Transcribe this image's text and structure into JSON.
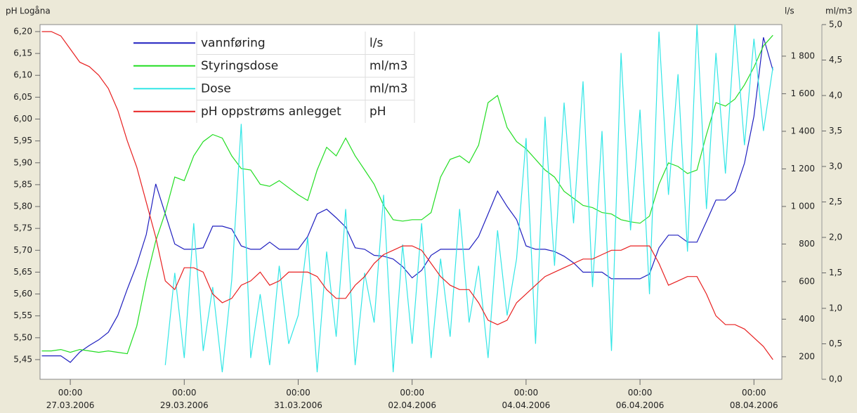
{
  "chart_data": {
    "type": "line",
    "axis_titles": {
      "y": "pH",
      "y_sub": "Logåna",
      "y2": "l/s",
      "y3": "ml/m3"
    },
    "x": [
      "2006-03-26T12:00",
      "2006-03-26T16:00",
      "2006-03-26T20:00",
      "2006-03-27T00:00",
      "2006-03-27T04:00",
      "2006-03-27T08:00",
      "2006-03-27T12:00",
      "2006-03-27T16:00",
      "2006-03-27T20:00",
      "2006-03-28T00:00",
      "2006-03-28T04:00",
      "2006-03-28T08:00",
      "2006-03-28T12:00",
      "2006-03-28T16:00",
      "2006-03-28T20:00",
      "2006-03-29T00:00",
      "2006-03-29T04:00",
      "2006-03-29T08:00",
      "2006-03-29T12:00",
      "2006-03-29T16:00",
      "2006-03-29T20:00",
      "2006-03-30T00:00",
      "2006-03-30T04:00",
      "2006-03-30T08:00",
      "2006-03-30T12:00",
      "2006-03-30T16:00",
      "2006-03-30T20:00",
      "2006-03-31T00:00",
      "2006-03-31T04:00",
      "2006-03-31T08:00",
      "2006-03-31T12:00",
      "2006-03-31T16:00",
      "2006-03-31T20:00",
      "2006-04-01T00:00",
      "2006-04-01T04:00",
      "2006-04-01T08:00",
      "2006-04-01T12:00",
      "2006-04-01T16:00",
      "2006-04-01T20:00",
      "2006-04-02T00:00",
      "2006-04-02T04:00",
      "2006-04-02T08:00",
      "2006-04-02T12:00",
      "2006-04-02T16:00",
      "2006-04-02T20:00",
      "2006-04-03T00:00",
      "2006-04-03T04:00",
      "2006-04-03T08:00",
      "2006-04-03T12:00",
      "2006-04-03T16:00",
      "2006-04-03T20:00",
      "2006-04-04T00:00",
      "2006-04-04T04:00",
      "2006-04-04T08:00",
      "2006-04-04T12:00",
      "2006-04-04T16:00",
      "2006-04-04T20:00",
      "2006-04-05T00:00",
      "2006-04-05T04:00",
      "2006-04-05T08:00",
      "2006-04-05T12:00",
      "2006-04-05T16:00",
      "2006-04-05T20:00",
      "2006-04-06T00:00",
      "2006-04-06T04:00",
      "2006-04-06T08:00",
      "2006-04-06T12:00",
      "2006-04-06T16:00",
      "2006-04-06T20:00",
      "2006-04-07T00:00",
      "2006-04-07T04:00",
      "2006-04-07T08:00",
      "2006-04-07T12:00",
      "2006-04-07T16:00",
      "2006-04-07T20:00",
      "2006-04-08T00:00",
      "2006-04-08T04:00",
      "2006-04-08T08:00"
    ],
    "xlim": [
      "2006-03-26T11:15",
      "2006-04-08T11:45"
    ],
    "xticks": [
      {
        "value": "2006-03-27T00:00",
        "label": "00:00\n27.03.2006"
      },
      {
        "value": "2006-03-29T00:00",
        "label": "00:00\n29.03.2006"
      },
      {
        "value": "2006-03-31T00:00",
        "label": "00:00\n31.03.2006"
      },
      {
        "value": "2006-04-02T00:00",
        "label": "00:00\n02.04.2006"
      },
      {
        "value": "2006-04-04T00:00",
        "label": "00:00\n04.04.2006"
      },
      {
        "value": "2006-04-06T00:00",
        "label": "00:00\n06.04.2006"
      },
      {
        "value": "2006-04-08T00:00",
        "label": "00:00\n08.04.2006"
      }
    ],
    "ylim": [
      5.405,
      6.216
    ],
    "yticks": [
      {
        "value": 5.45,
        "label": "5,45"
      },
      {
        "value": 5.5,
        "label": "5,50"
      },
      {
        "value": 5.55,
        "label": "5,55"
      },
      {
        "value": 5.6,
        "label": "5,60"
      },
      {
        "value": 5.65,
        "label": "5,65"
      },
      {
        "value": 5.7,
        "label": "5,70"
      },
      {
        "value": 5.75,
        "label": "5,75"
      },
      {
        "value": 5.8,
        "label": "5,80"
      },
      {
        "value": 5.85,
        "label": "5,85"
      },
      {
        "value": 5.9,
        "label": "5,90"
      },
      {
        "value": 5.95,
        "label": "5,95"
      },
      {
        "value": 6.0,
        "label": "6,00"
      },
      {
        "value": 6.05,
        "label": "6,05"
      },
      {
        "value": 6.1,
        "label": "6,10"
      },
      {
        "value": 6.15,
        "label": "6,15"
      },
      {
        "value": 6.2,
        "label": "6,20"
      }
    ],
    "y2lim": [
      80,
      1968
    ],
    "y2ticks": [
      200,
      400,
      600,
      800,
      {
        "value": 1000,
        "label": "1 000"
      },
      {
        "value": 1200,
        "label": "1 200"
      },
      {
        "value": 1400,
        "label": "1 400"
      },
      {
        "value": 1600,
        "label": "1 600"
      },
      {
        "value": 1800,
        "label": "1 800"
      }
    ],
    "y3lim": [
      0,
      5
    ],
    "y3ticks": [
      {
        "value": 0,
        "label": "0,0"
      },
      {
        "value": 0.5,
        "label": "0,5"
      },
      {
        "value": 1,
        "label": "1,0"
      },
      {
        "value": 1.5,
        "label": "1,5"
      },
      {
        "value": 2,
        "label": "2,0"
      },
      {
        "value": 2.5,
        "label": "2,5"
      },
      {
        "value": 3,
        "label": "3,0"
      },
      {
        "value": 3.5,
        "label": "3,5"
      },
      {
        "value": 4,
        "label": "4,0"
      },
      {
        "value": 4.5,
        "label": "4,5"
      },
      {
        "value": 5,
        "label": "5,0"
      }
    ],
    "series": [
      {
        "name": "vannføring",
        "unit": "l/s",
        "color": "#1f1fbf",
        "axis": "y2",
        "values": [
          205,
          205,
          205,
          170,
          225,
          260,
          290,
          330,
          420,
          560,
          690,
          850,
          1120,
          960,
          800,
          772,
          772,
          780,
          895,
          895,
          880,
          790,
          772,
          772,
          810,
          772,
          772,
          772,
          840,
          960,
          985,
          940,
          890,
          780,
          772,
          740,
          735,
          720,
          680,
          620,
          660,
          740,
          772,
          772,
          772,
          772,
          840,
          960,
          1082,
          1000,
          930,
          790,
          772,
          772,
          760,
          735,
          700,
          650,
          650,
          650,
          615,
          615,
          615,
          615,
          640,
          780,
          847,
          847,
          810,
          810,
          920,
          1034,
          1034,
          1080,
          1230,
          1480,
          1900,
          1725
        ]
      },
      {
        "name": "Styringsdose",
        "unit": "ml/m3",
        "color": "#22dd22",
        "axis": "y3",
        "values": [
          0.4,
          0.4,
          0.42,
          0.38,
          0.42,
          0.4,
          0.38,
          0.4,
          0.38,
          0.36,
          0.75,
          1.4,
          1.95,
          2.35,
          2.85,
          2.8,
          3.15,
          3.35,
          3.45,
          3.4,
          3.15,
          2.97,
          2.95,
          2.75,
          2.72,
          2.8,
          2.7,
          2.6,
          2.52,
          2.95,
          3.27,
          3.15,
          3.4,
          3.15,
          2.95,
          2.75,
          2.45,
          2.25,
          2.23,
          2.25,
          2.25,
          2.35,
          2.85,
          3.1,
          3.15,
          3.05,
          3.3,
          3.9,
          4.0,
          3.55,
          3.35,
          3.25,
          3.1,
          2.95,
          2.85,
          2.65,
          2.55,
          2.45,
          2.42,
          2.35,
          2.33,
          2.25,
          2.22,
          2.2,
          2.3,
          2.75,
          3.05,
          3.0,
          2.9,
          2.95,
          3.45,
          3.9,
          3.85,
          3.95,
          4.15,
          4.4,
          4.7,
          4.85
        ]
      },
      {
        "name": "Dose",
        "unit": "ml/m3",
        "color": "#33e6e6",
        "axis": "y3",
        "values": [
          null,
          null,
          null,
          null,
          null,
          null,
          null,
          null,
          null,
          null,
          null,
          null,
          null,
          0.2,
          1.5,
          0.3,
          2.2,
          0.4,
          1.3,
          0.1,
          1.4,
          3.6,
          0.3,
          1.2,
          0.2,
          1.6,
          0.5,
          0.9,
          2.0,
          0.1,
          1.8,
          0.6,
          2.4,
          0.2,
          1.5,
          0.8,
          2.6,
          0.1,
          1.9,
          0.5,
          2.2,
          0.3,
          1.7,
          0.6,
          2.4,
          0.8,
          1.6,
          0.3,
          2.1,
          0.9,
          1.7,
          3.4,
          0.5,
          3.7,
          1.6,
          3.9,
          2.2,
          4.2,
          1.3,
          3.5,
          0.4,
          4.6,
          2.1,
          3.8,
          1.2,
          4.9,
          2.6,
          4.3,
          1.8,
          5.0,
          2.4,
          4.6,
          2.9,
          5.0,
          3.3,
          4.8,
          3.5,
          4.4
        ]
      },
      {
        "name": "pH oppstrøms anlegget",
        "unit": "pH",
        "color": "#e82020",
        "axis": "y",
        "values": [
          6.2,
          6.2,
          6.19,
          6.16,
          6.13,
          6.12,
          6.1,
          6.07,
          6.02,
          5.95,
          5.89,
          5.81,
          5.73,
          5.63,
          5.61,
          5.66,
          5.66,
          5.65,
          5.6,
          5.58,
          5.59,
          5.62,
          5.63,
          5.65,
          5.62,
          5.63,
          5.65,
          5.65,
          5.65,
          5.64,
          5.61,
          5.59,
          5.59,
          5.62,
          5.64,
          5.67,
          5.69,
          5.7,
          5.71,
          5.71,
          5.7,
          5.67,
          5.64,
          5.62,
          5.61,
          5.61,
          5.58,
          5.54,
          5.53,
          5.54,
          5.58,
          5.6,
          5.62,
          5.64,
          5.65,
          5.66,
          5.67,
          5.68,
          5.68,
          5.69,
          5.7,
          5.7,
          5.71,
          5.71,
          5.71,
          5.67,
          5.62,
          5.63,
          5.64,
          5.64,
          5.6,
          5.55,
          5.53,
          5.53,
          5.52,
          5.5,
          5.48,
          5.45
        ]
      }
    ]
  }
}
